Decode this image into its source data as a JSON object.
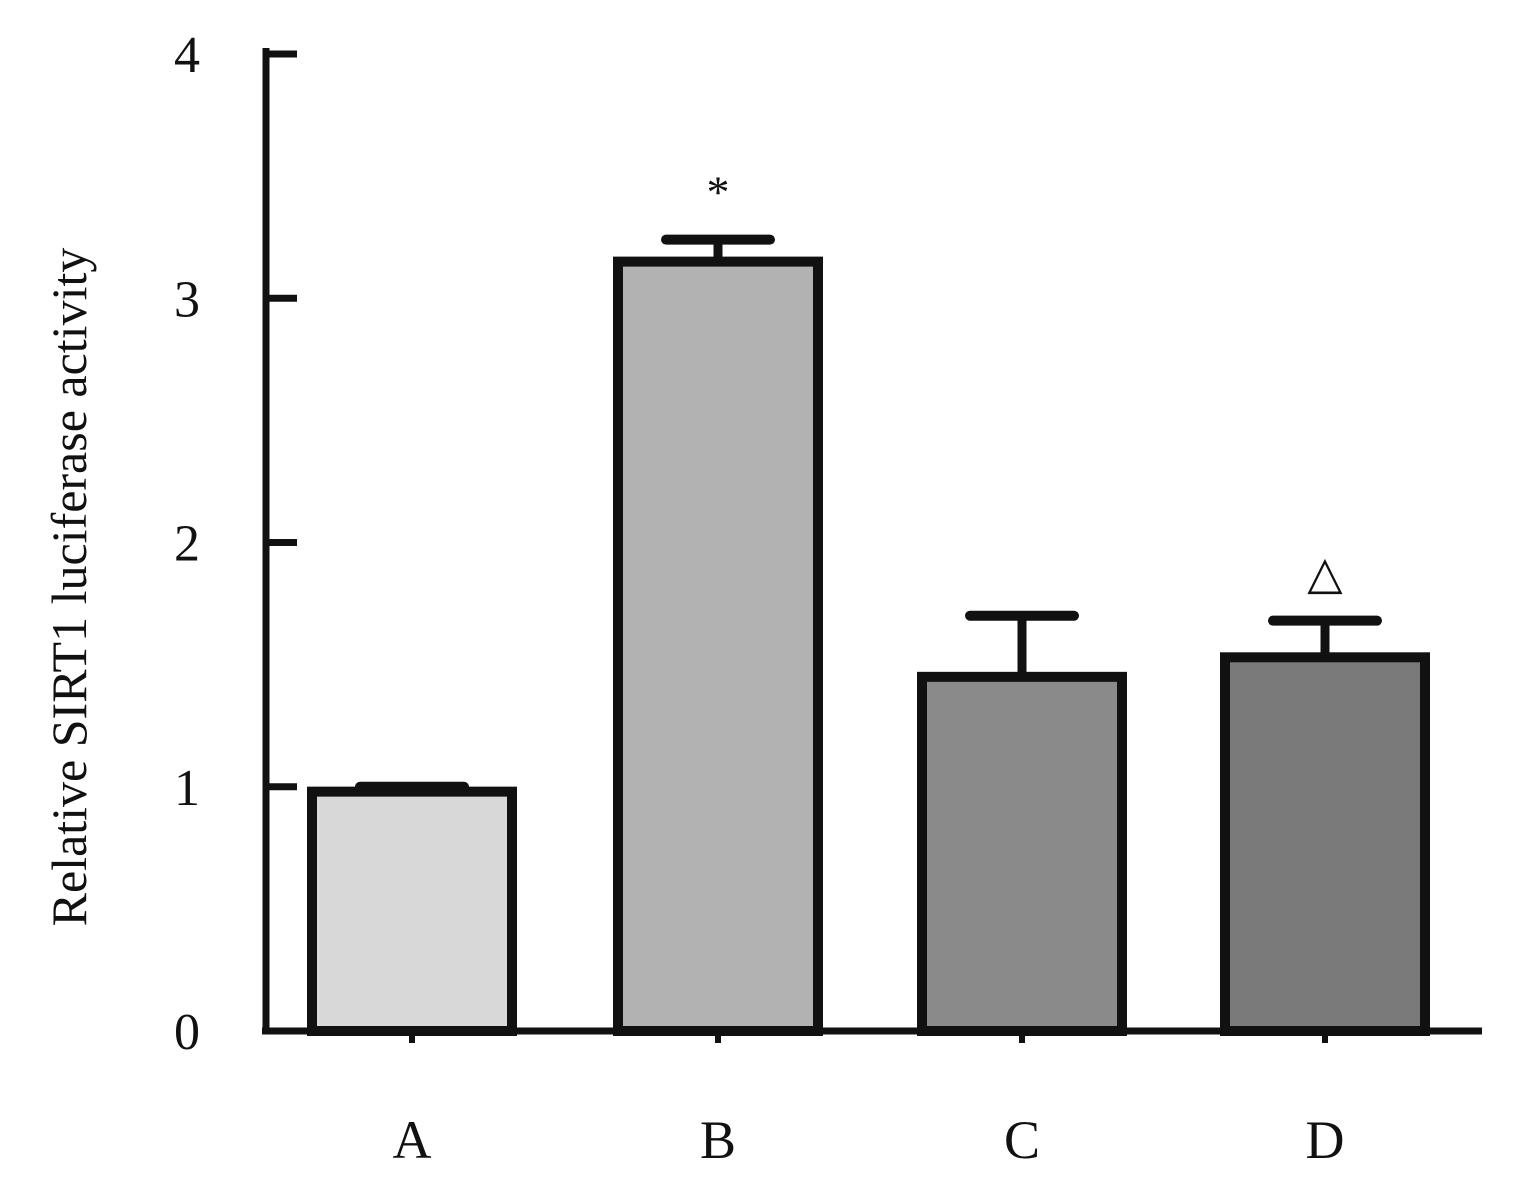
{
  "chart_data": {
    "type": "bar",
    "title": "",
    "xlabel": "",
    "ylabel": "Relative SIRT1 luciferase activity",
    "categories": [
      "A",
      "B",
      "C",
      "D"
    ],
    "values": [
      0.98,
      3.15,
      1.45,
      1.53
    ],
    "error_upper": [
      1.0,
      3.24,
      1.7,
      1.68
    ],
    "annotations": [
      "",
      "*",
      "",
      "△"
    ],
    "ylim": [
      0,
      4
    ],
    "yticks": [
      0,
      1,
      2,
      3,
      4
    ],
    "ytick_labels": [
      "0",
      "1",
      "2",
      "3",
      "4"
    ],
    "grid": false,
    "colors": [
      "#d8d8d8",
      "#b2b2b2",
      "#8a8a8a",
      "#7a7a7a"
    ],
    "edge_color": "#111111"
  }
}
